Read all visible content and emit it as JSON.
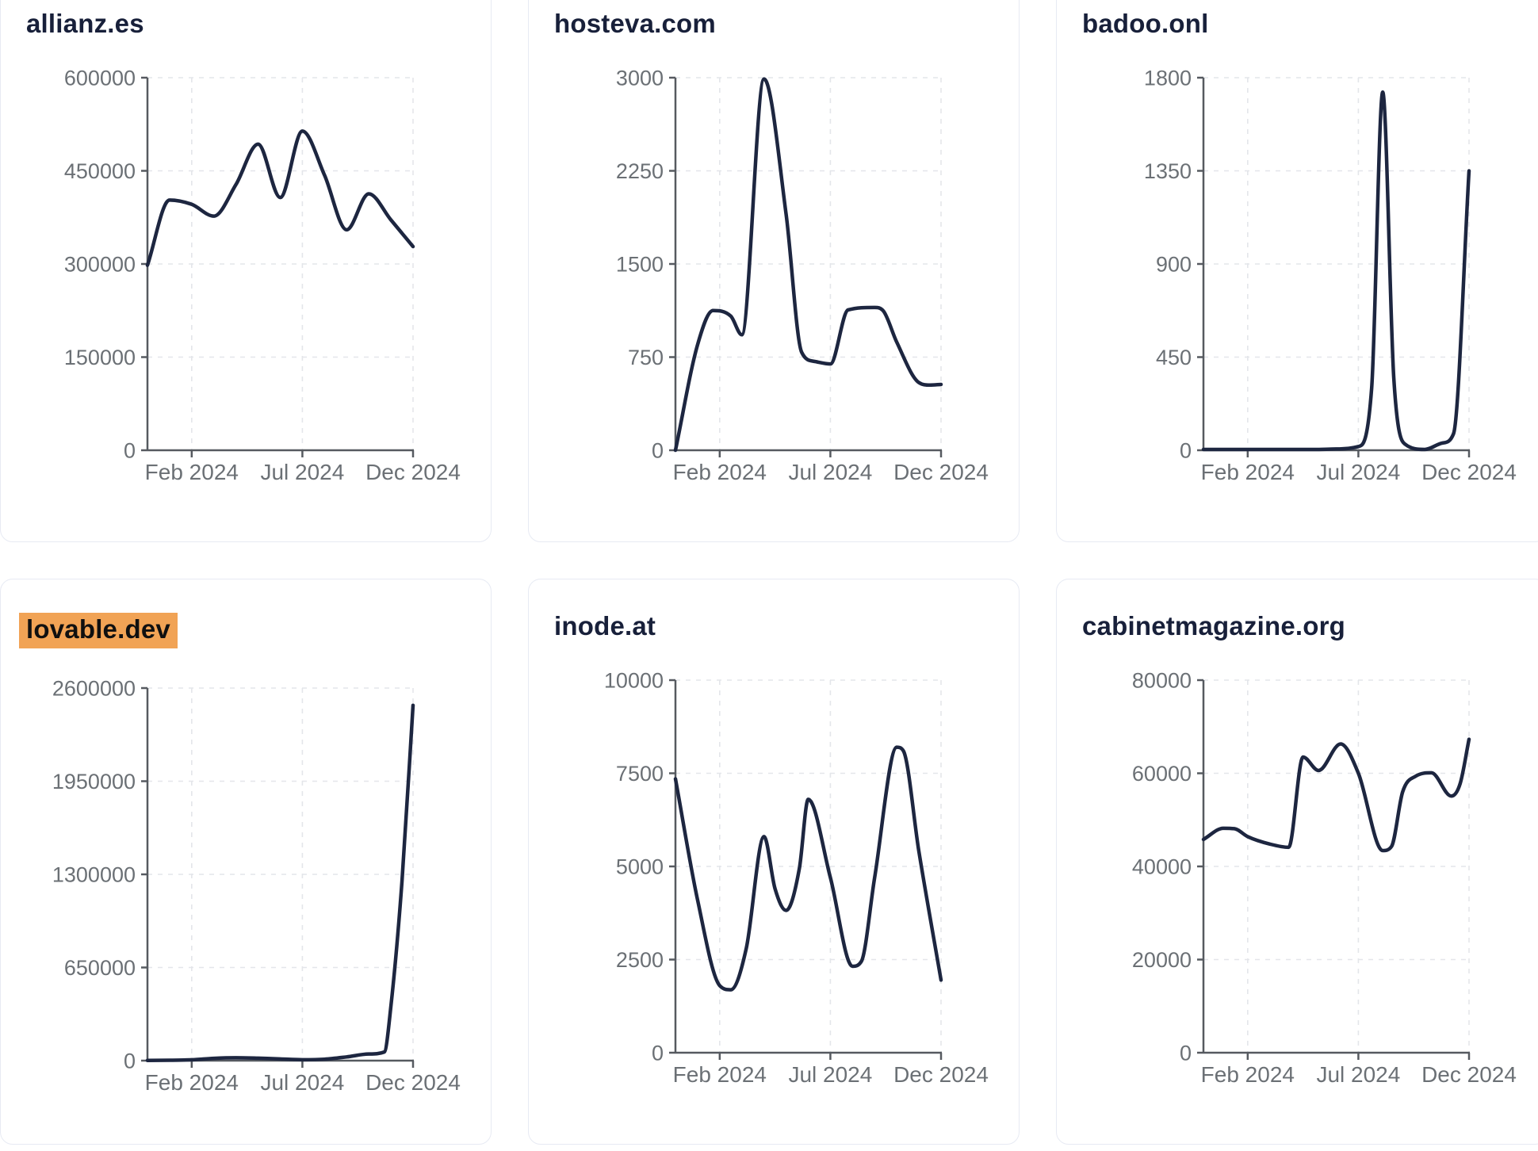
{
  "page": {
    "background": "#ffffff"
  },
  "styles": {
    "line_color": "#1d2640",
    "title_color": "#18203a",
    "axis_color": "#565a60",
    "tick_label_color": "#6b7075",
    "grid_color": "#e4e6ea",
    "card_border": "#e7eaf3",
    "highlight_bg": "#f1a355",
    "highlight_text": "#101010"
  },
  "chart_data": [
    {
      "type": "line",
      "title": "allianz.es",
      "highlighted": false,
      "x_range_months": [
        "Dec 2023",
        "Dec 2024"
      ],
      "x_tick_labels": [
        "Feb 2024",
        "Jul 2024",
        "Dec 2024"
      ],
      "x_tick_positions": [
        2,
        7,
        12
      ],
      "xlim": [
        0,
        12
      ],
      "y_ticks": [
        0,
        150000,
        300000,
        450000,
        600000
      ],
      "ylim": [
        0,
        600000
      ],
      "grid": "dashed",
      "legend": "none",
      "points": [
        [
          0,
          298000
        ],
        [
          1,
          403000
        ],
        [
          2,
          396000
        ],
        [
          3,
          377000
        ],
        [
          4,
          428000
        ],
        [
          5,
          493000
        ],
        [
          6,
          407000
        ],
        [
          7,
          514000
        ],
        [
          8,
          443000
        ],
        [
          9,
          355000
        ],
        [
          10,
          413000
        ],
        [
          11,
          371000
        ],
        [
          12,
          328000
        ]
      ]
    },
    {
      "type": "line",
      "title": "hosteva.com",
      "highlighted": false,
      "x_range_months": [
        "Dec 2023",
        "Dec 2024"
      ],
      "x_tick_labels": [
        "Feb 2024",
        "Jul 2024",
        "Dec 2024"
      ],
      "x_tick_positions": [
        2,
        7,
        12
      ],
      "xlim": [
        0,
        12
      ],
      "y_ticks": [
        0,
        750,
        1500,
        2250,
        3000
      ],
      "ylim": [
        0,
        3000
      ],
      "grid": "dashed",
      "legend": "none",
      "points": [
        [
          0,
          0
        ],
        [
          1,
          850
        ],
        [
          1.7,
          1125
        ],
        [
          2.5,
          1080
        ],
        [
          3,
          930
        ],
        [
          4,
          2990
        ],
        [
          5,
          1900
        ],
        [
          5.7,
          790
        ],
        [
          6.3,
          715
        ],
        [
          7,
          695
        ],
        [
          7.8,
          1130
        ],
        [
          9,
          1150
        ],
        [
          9.4,
          1120
        ],
        [
          10,
          870
        ],
        [
          11,
          545
        ],
        [
          11.5,
          525
        ],
        [
          12,
          530
        ]
      ]
    },
    {
      "type": "line",
      "title": "badoo.onl",
      "highlighted": false,
      "x_range_months": [
        "Dec 2023",
        "Dec 2024"
      ],
      "x_tick_labels": [
        "Feb 2024",
        "Jul 2024",
        "Dec 2024"
      ],
      "x_tick_positions": [
        2,
        7,
        12
      ],
      "xlim": [
        0,
        12
      ],
      "y_ticks": [
        0,
        450,
        900,
        1350,
        1800
      ],
      "ylim": [
        0,
        1800
      ],
      "grid": "dashed",
      "legend": "none",
      "points": [
        [
          0,
          4
        ],
        [
          1,
          4
        ],
        [
          2,
          4
        ],
        [
          3,
          4
        ],
        [
          4,
          4
        ],
        [
          5,
          4
        ],
        [
          6,
          6
        ],
        [
          7,
          18
        ],
        [
          7.6,
          300
        ],
        [
          8.1,
          1730
        ],
        [
          8.6,
          350
        ],
        [
          9.1,
          30
        ],
        [
          10,
          4
        ],
        [
          10.8,
          35
        ],
        [
          11.3,
          80
        ],
        [
          12,
          1350
        ]
      ]
    },
    {
      "type": "line",
      "title": "lovable.dev",
      "highlighted": true,
      "x_range_months": [
        "Dec 2023",
        "Dec 2024"
      ],
      "x_tick_labels": [
        "Feb 2024",
        "Jul 2024",
        "Dec 2024"
      ],
      "x_tick_positions": [
        2,
        7,
        12
      ],
      "xlim": [
        0,
        12
      ],
      "y_ticks": [
        0,
        650000,
        1300000,
        1950000,
        2600000
      ],
      "ylim": [
        0,
        2600000
      ],
      "grid": "dashed",
      "legend": "none",
      "points": [
        [
          0,
          1500
        ],
        [
          1,
          2500
        ],
        [
          2,
          6000
        ],
        [
          3,
          16000
        ],
        [
          4,
          20000
        ],
        [
          5,
          17000
        ],
        [
          6,
          12000
        ],
        [
          7,
          6500
        ],
        [
          8,
          10000
        ],
        [
          9,
          26000
        ],
        [
          10,
          46000
        ],
        [
          10.7,
          60000
        ],
        [
          11,
          380000
        ],
        [
          11.5,
          1250000
        ],
        [
          12,
          2480000
        ]
      ]
    },
    {
      "type": "line",
      "title": "inode.at",
      "highlighted": false,
      "x_range_months": [
        "Dec 2023",
        "Dec 2024"
      ],
      "x_tick_labels": [
        "Feb 2024",
        "Jul 2024",
        "Dec 2024"
      ],
      "x_tick_positions": [
        2,
        7,
        12
      ],
      "xlim": [
        0,
        12
      ],
      "y_ticks": [
        0,
        2500,
        5000,
        7500,
        10000
      ],
      "ylim": [
        0,
        10000
      ],
      "grid": "dashed",
      "legend": "none",
      "points": [
        [
          0,
          7350
        ],
        [
          1,
          4100
        ],
        [
          2,
          1800
        ],
        [
          2.5,
          1690
        ],
        [
          3.2,
          2800
        ],
        [
          4,
          5800
        ],
        [
          4.5,
          4400
        ],
        [
          5,
          3820
        ],
        [
          5.6,
          4950
        ],
        [
          6,
          6800
        ],
        [
          7,
          4700
        ],
        [
          8,
          2320
        ],
        [
          8.4,
          2450
        ],
        [
          9,
          4700
        ],
        [
          10,
          8200
        ],
        [
          10.3,
          8100
        ],
        [
          11,
          5400
        ],
        [
          12,
          1950
        ]
      ]
    },
    {
      "type": "line",
      "title": "cabinetmagazine.org",
      "highlighted": false,
      "x_range_months": [
        "Dec 2023",
        "Dec 2024"
      ],
      "x_tick_labels": [
        "Feb 2024",
        "Jul 2024",
        "Dec 2024"
      ],
      "x_tick_positions": [
        2,
        7,
        12
      ],
      "xlim": [
        0,
        12
      ],
      "y_ticks": [
        0,
        20000,
        40000,
        60000,
        80000
      ],
      "ylim": [
        0,
        80000
      ],
      "grid": "dashed",
      "legend": "none",
      "points": [
        [
          0,
          45800
        ],
        [
          0.9,
          48200
        ],
        [
          1.4,
          48100
        ],
        [
          2,
          46400
        ],
        [
          3,
          44800
        ],
        [
          3.85,
          44100
        ],
        [
          4.5,
          63500
        ],
        [
          5.2,
          60600
        ],
        [
          6.2,
          66300
        ],
        [
          7,
          60000
        ],
        [
          8.1,
          43400
        ],
        [
          8.5,
          44300
        ],
        [
          9,
          56000
        ],
        [
          9.6,
          59400
        ],
        [
          10.3,
          60100
        ],
        [
          11.2,
          55100
        ],
        [
          11.6,
          57800
        ],
        [
          12,
          67300
        ]
      ]
    }
  ]
}
